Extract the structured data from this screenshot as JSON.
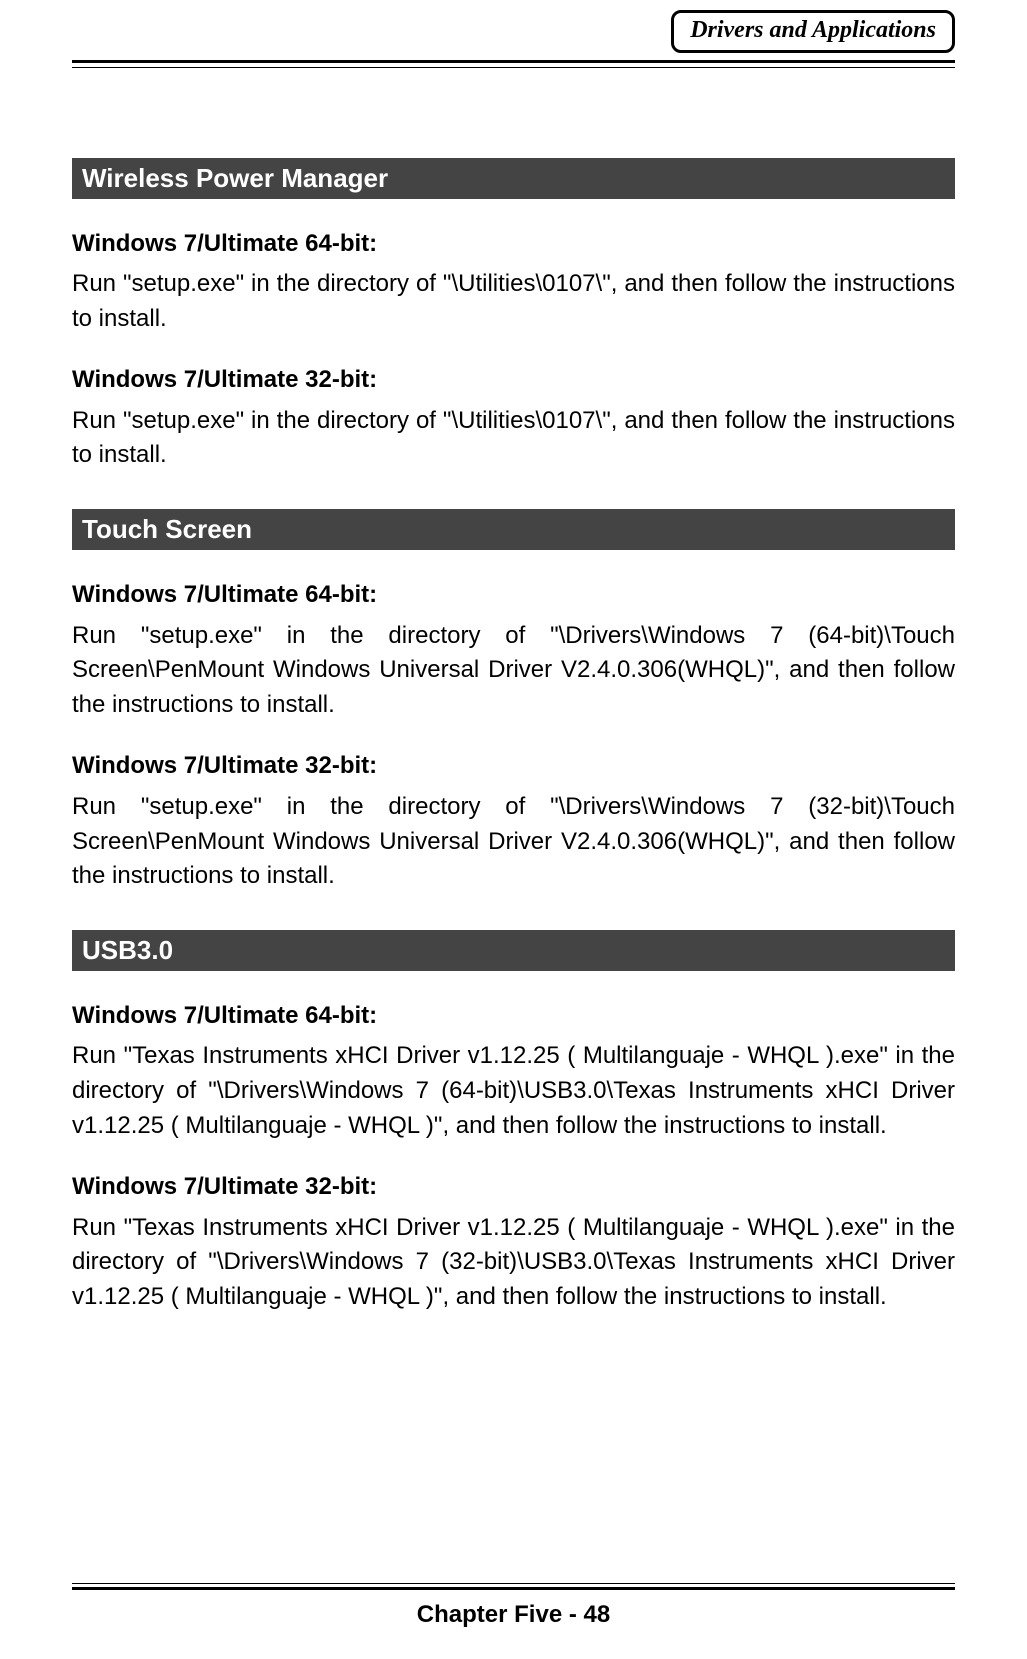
{
  "header": {
    "box_label": "Drivers and Applications"
  },
  "colors": {
    "section_bg": "#444444",
    "section_text": "#ffffff",
    "page_text": "#000000",
    "page_bg": "#ffffff"
  },
  "sections": [
    {
      "title": " Wireless Power Manager",
      "items": [
        {
          "label": "Windows 7/Ultimate 64-bit:",
          "text": "Run \"setup.exe\" in the directory of \"\\Utilities\\0107\\\", and then follow the instructions to install."
        },
        {
          "label": "Windows 7/Ultimate 32-bit:",
          "text": "Run \"setup.exe\" in the directory of \"\\Utilities\\0107\\\", and then follow the instructions to install."
        }
      ]
    },
    {
      "title": " Touch Screen",
      "items": [
        {
          "label": "Windows 7/Ultimate 64-bit:",
          "text": "Run \"setup.exe\" in the directory of \"\\Drivers\\Windows 7 (64-bit)\\Touch Screen\\PenMount Windows Universal Driver V2.4.0.306(WHQL)\", and then follow the instructions to install."
        },
        {
          "label": "Windows 7/Ultimate 32-bit:",
          "text": "Run \"setup.exe\" in the directory of \"\\Drivers\\Windows 7 (32-bit)\\Touch Screen\\PenMount Windows Universal Driver V2.4.0.306(WHQL)\", and then follow the instructions to install."
        }
      ]
    },
    {
      "title": " USB3.0",
      "items": [
        {
          "label": "Windows 7/Ultimate 64-bit:",
          "text": "Run \"Texas Instruments xHCI Driver v1.12.25 ( Multilanguaje - WHQL ).exe\" in the directory of \"\\Drivers\\Windows 7 (64-bit)\\USB3.0\\Texas Instruments xHCI Driver v1.12.25 ( Multilanguaje - WHQL )\", and then follow the instructions to install."
        },
        {
          "label": "Windows 7/Ultimate 32-bit:",
          "text": "Run \"Texas Instruments xHCI Driver v1.12.25 ( Multilanguaje - WHQL ).exe\" in the directory of \"\\Drivers\\Windows 7 (32-bit)\\USB3.0\\Texas Instruments xHCI Driver v1.12.25 ( Multilanguaje - WHQL )\", and then follow the instructions to install."
        }
      ]
    }
  ],
  "footer": {
    "text": "Chapter Five - 48"
  }
}
